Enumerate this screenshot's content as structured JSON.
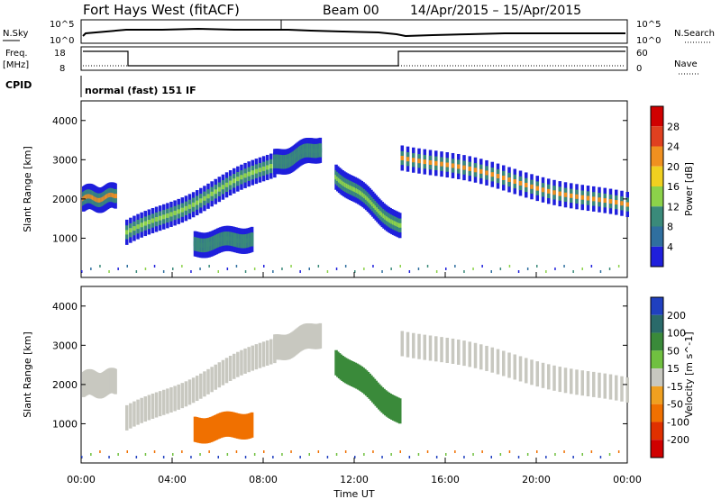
{
  "header": {
    "title": "Fort Hays West (fitACF)",
    "beam": "Beam 00",
    "date_range": "14/Apr/2015 – 15/Apr/2015"
  },
  "meta_panels": {
    "nsky_label": "N.Sky",
    "nsky_ticks": [
      "10^5",
      "10^0"
    ],
    "nsearch_label": "N.Search",
    "nsearch_ticks": [
      "10^5",
      "10^0"
    ],
    "freq_label": "Freq.",
    "freq_unit": "[MHz]",
    "freq_ticks": [
      "18",
      "8"
    ],
    "nave_label": "Nave",
    "nave_ticks": [
      "60",
      "0"
    ],
    "cpid_label": "CPID",
    "cpid_text": "normal (fast) 151 IF"
  },
  "x_axis": {
    "label": "Time UT",
    "ticks": [
      "00:00",
      "04:00",
      "08:00",
      "12:00",
      "16:00",
      "20:00",
      "00:00"
    ]
  },
  "colors": {
    "power": [
      "#1f1fdc",
      "#2f6f9f",
      "#3a8a7a",
      "#8cd24a",
      "#f0d020",
      "#f09020",
      "#e04020",
      "#d00000"
    ],
    "velocity": [
      "#2040c0",
      "#2a6a6a",
      "#3a8a3a",
      "#70c040",
      "#c8c8c0",
      "#f0a020",
      "#f07000",
      "#e03000",
      "#d00000"
    ]
  },
  "chart_data": [
    {
      "type": "heatmap",
      "title": "",
      "xlabel": "Time UT",
      "ylabel": "Slant Range [km]",
      "x_range_hours": [
        0,
        24
      ],
      "ylim": [
        0,
        4500
      ],
      "yticks": [
        "1000",
        "2000",
        "3000",
        "4000"
      ],
      "colorbar": {
        "label": "Power [dB]",
        "ticks": [
          "4",
          "8",
          "12",
          "16",
          "20",
          "24",
          "28"
        ],
        "range": [
          0,
          32
        ]
      },
      "echo_tracks": [
        {
          "x": [
            0.1,
            1.5
          ],
          "y": [
            2000,
            2050
          ],
          "peak_db": 20
        },
        {
          "x": [
            2.0,
            8.5
          ],
          "y": [
            1100,
            2900
          ],
          "peak_db": 14
        },
        {
          "x": [
            8.5,
            10.5
          ],
          "y": [
            2900,
            3300
          ],
          "peak_db": 8
        },
        {
          "x": [
            5.0,
            7.5
          ],
          "y": [
            850,
            1000
          ],
          "peak_db": 8
        },
        {
          "x": [
            11.2,
            14.0
          ],
          "y": [
            2600,
            1300
          ],
          "peak_db": 12
        },
        {
          "x": [
            14.1,
            24.0
          ],
          "y": [
            3100,
            1800
          ],
          "peak_db": 22
        }
      ]
    },
    {
      "type": "heatmap",
      "title": "",
      "xlabel": "Time UT",
      "ylabel": "Slant Range [km]",
      "x_range_hours": [
        0,
        24
      ],
      "ylim": [
        0,
        4500
      ],
      "yticks": [
        "1000",
        "2000",
        "3000",
        "4000"
      ],
      "colorbar": {
        "label": "Velocity [m s^-1]",
        "ticks": [
          "200",
          "100",
          "50",
          "15",
          "-15",
          "-50",
          "-100",
          "-200"
        ],
        "range": [
          -250,
          250
        ]
      },
      "echo_tracks": [
        {
          "x": [
            0.1,
            1.5
          ],
          "y": [
            2000,
            2050
          ],
          "velocity": 0
        },
        {
          "x": [
            2.0,
            8.5
          ],
          "y": [
            1100,
            2900
          ],
          "velocity": 0
        },
        {
          "x": [
            8.5,
            10.5
          ],
          "y": [
            2900,
            3300
          ],
          "velocity": 0
        },
        {
          "x": [
            5.0,
            7.5
          ],
          "y": [
            850,
            1000
          ],
          "velocity": -70
        },
        {
          "x": [
            11.2,
            14.0
          ],
          "y": [
            2600,
            1300
          ],
          "velocity": 40
        },
        {
          "x": [
            14.1,
            24.0
          ],
          "y": [
            3100,
            1800
          ],
          "velocity": 0
        }
      ]
    }
  ]
}
